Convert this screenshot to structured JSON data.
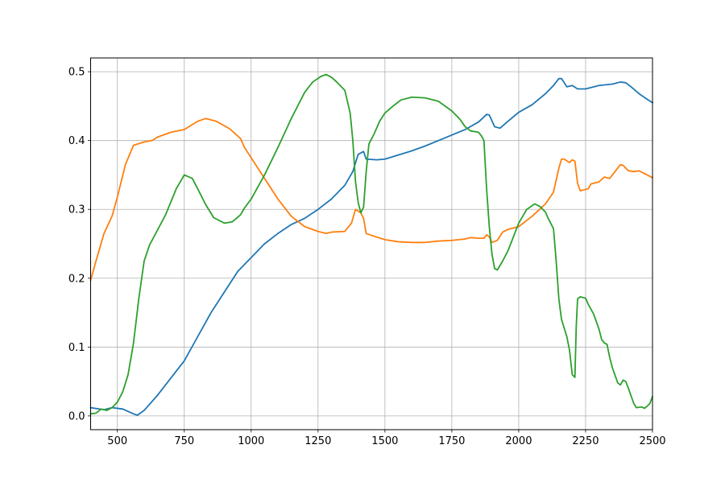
{
  "chart_data": {
    "type": "line",
    "title": "",
    "xlabel": "",
    "ylabel": "",
    "xlim": [
      400,
      2500
    ],
    "ylim": [
      -0.02,
      0.52
    ],
    "xticks": [
      500,
      750,
      1000,
      1250,
      1500,
      1750,
      2000,
      2250,
      2500
    ],
    "yticks": [
      0.0,
      0.1,
      0.2,
      0.3,
      0.4,
      0.5
    ],
    "xtick_labels": [
      "500",
      "750",
      "1000",
      "1250",
      "1500",
      "1750",
      "2000",
      "2250",
      "2500"
    ],
    "ytick_labels": [
      "0.0",
      "0.1",
      "0.2",
      "0.3",
      "0.4",
      "0.5"
    ],
    "grid": true,
    "legend": "none",
    "series": [
      {
        "color": "#1f77b4",
        "points": [
          [
            400,
            0.012
          ],
          [
            450,
            0.009
          ],
          [
            480,
            0.012
          ],
          [
            520,
            0.01
          ],
          [
            560,
            0.003
          ],
          [
            575,
            0.001
          ],
          [
            600,
            0.008
          ],
          [
            650,
            0.03
          ],
          [
            700,
            0.055
          ],
          [
            750,
            0.08
          ],
          [
            800,
            0.115
          ],
          [
            850,
            0.15
          ],
          [
            900,
            0.18
          ],
          [
            950,
            0.21
          ],
          [
            1000,
            0.23
          ],
          [
            1050,
            0.25
          ],
          [
            1100,
            0.265
          ],
          [
            1150,
            0.278
          ],
          [
            1200,
            0.287
          ],
          [
            1250,
            0.3
          ],
          [
            1300,
            0.315
          ],
          [
            1350,
            0.335
          ],
          [
            1380,
            0.355
          ],
          [
            1400,
            0.38
          ],
          [
            1420,
            0.384
          ],
          [
            1430,
            0.373
          ],
          [
            1470,
            0.372
          ],
          [
            1500,
            0.373
          ],
          [
            1550,
            0.379
          ],
          [
            1600,
            0.385
          ],
          [
            1650,
            0.392
          ],
          [
            1700,
            0.4
          ],
          [
            1750,
            0.408
          ],
          [
            1800,
            0.416
          ],
          [
            1850,
            0.427
          ],
          [
            1880,
            0.438
          ],
          [
            1890,
            0.437
          ],
          [
            1910,
            0.42
          ],
          [
            1930,
            0.418
          ],
          [
            1960,
            0.428
          ],
          [
            2000,
            0.441
          ],
          [
            2050,
            0.452
          ],
          [
            2100,
            0.468
          ],
          [
            2130,
            0.48
          ],
          [
            2150,
            0.49
          ],
          [
            2160,
            0.49
          ],
          [
            2180,
            0.478
          ],
          [
            2200,
            0.48
          ],
          [
            2220,
            0.475
          ],
          [
            2250,
            0.475
          ],
          [
            2300,
            0.48
          ],
          [
            2350,
            0.482
          ],
          [
            2380,
            0.485
          ],
          [
            2400,
            0.484
          ],
          [
            2420,
            0.478
          ],
          [
            2450,
            0.468
          ],
          [
            2480,
            0.46
          ],
          [
            2500,
            0.455
          ]
        ]
      },
      {
        "color": "#ff7f0e",
        "points": [
          [
            400,
            0.197
          ],
          [
            420,
            0.225
          ],
          [
            450,
            0.265
          ],
          [
            480,
            0.29
          ],
          [
            500,
            0.318
          ],
          [
            530,
            0.365
          ],
          [
            560,
            0.393
          ],
          [
            600,
            0.398
          ],
          [
            630,
            0.4
          ],
          [
            650,
            0.405
          ],
          [
            700,
            0.412
          ],
          [
            750,
            0.416
          ],
          [
            800,
            0.428
          ],
          [
            830,
            0.432
          ],
          [
            870,
            0.428
          ],
          [
            920,
            0.417
          ],
          [
            960,
            0.403
          ],
          [
            975,
            0.39
          ],
          [
            1000,
            0.375
          ],
          [
            1050,
            0.345
          ],
          [
            1100,
            0.315
          ],
          [
            1150,
            0.29
          ],
          [
            1200,
            0.275
          ],
          [
            1250,
            0.268
          ],
          [
            1280,
            0.265
          ],
          [
            1300,
            0.267
          ],
          [
            1350,
            0.268
          ],
          [
            1375,
            0.28
          ],
          [
            1390,
            0.3
          ],
          [
            1410,
            0.295
          ],
          [
            1420,
            0.287
          ],
          [
            1430,
            0.265
          ],
          [
            1460,
            0.261
          ],
          [
            1500,
            0.256
          ],
          [
            1550,
            0.253
          ],
          [
            1600,
            0.252
          ],
          [
            1650,
            0.252
          ],
          [
            1700,
            0.254
          ],
          [
            1750,
            0.255
          ],
          [
            1800,
            0.257
          ],
          [
            1820,
            0.259
          ],
          [
            1850,
            0.258
          ],
          [
            1870,
            0.258
          ],
          [
            1880,
            0.263
          ],
          [
            1890,
            0.26
          ],
          [
            1900,
            0.252
          ],
          [
            1920,
            0.255
          ],
          [
            1940,
            0.267
          ],
          [
            1960,
            0.271
          ],
          [
            2000,
            0.275
          ],
          [
            2050,
            0.29
          ],
          [
            2100,
            0.308
          ],
          [
            2130,
            0.325
          ],
          [
            2150,
            0.36
          ],
          [
            2160,
            0.373
          ],
          [
            2170,
            0.373
          ],
          [
            2190,
            0.368
          ],
          [
            2200,
            0.372
          ],
          [
            2210,
            0.37
          ],
          [
            2220,
            0.338
          ],
          [
            2230,
            0.327
          ],
          [
            2260,
            0.33
          ],
          [
            2270,
            0.337
          ],
          [
            2300,
            0.34
          ],
          [
            2320,
            0.347
          ],
          [
            2340,
            0.345
          ],
          [
            2360,
            0.355
          ],
          [
            2380,
            0.365
          ],
          [
            2390,
            0.364
          ],
          [
            2410,
            0.356
          ],
          [
            2430,
            0.355
          ],
          [
            2450,
            0.356
          ],
          [
            2480,
            0.35
          ],
          [
            2500,
            0.346
          ]
        ]
      },
      {
        "color": "#2ca02c",
        "points": [
          [
            400,
            0.003
          ],
          [
            420,
            0.004
          ],
          [
            440,
            0.01
          ],
          [
            460,
            0.008
          ],
          [
            480,
            0.012
          ],
          [
            500,
            0.02
          ],
          [
            520,
            0.035
          ],
          [
            540,
            0.06
          ],
          [
            560,
            0.105
          ],
          [
            580,
            0.17
          ],
          [
            600,
            0.225
          ],
          [
            620,
            0.248
          ],
          [
            650,
            0.27
          ],
          [
            680,
            0.292
          ],
          [
            720,
            0.33
          ],
          [
            750,
            0.35
          ],
          [
            780,
            0.345
          ],
          [
            800,
            0.33
          ],
          [
            830,
            0.307
          ],
          [
            860,
            0.288
          ],
          [
            900,
            0.28
          ],
          [
            930,
            0.282
          ],
          [
            960,
            0.292
          ],
          [
            975,
            0.302
          ],
          [
            1000,
            0.315
          ],
          [
            1050,
            0.35
          ],
          [
            1100,
            0.39
          ],
          [
            1150,
            0.432
          ],
          [
            1200,
            0.47
          ],
          [
            1230,
            0.485
          ],
          [
            1260,
            0.493
          ],
          [
            1280,
            0.496
          ],
          [
            1300,
            0.492
          ],
          [
            1320,
            0.485
          ],
          [
            1350,
            0.473
          ],
          [
            1370,
            0.44
          ],
          [
            1380,
            0.4
          ],
          [
            1390,
            0.34
          ],
          [
            1400,
            0.31
          ],
          [
            1410,
            0.295
          ],
          [
            1420,
            0.303
          ],
          [
            1430,
            0.355
          ],
          [
            1440,
            0.395
          ],
          [
            1460,
            0.41
          ],
          [
            1480,
            0.428
          ],
          [
            1500,
            0.44
          ],
          [
            1530,
            0.45
          ],
          [
            1560,
            0.459
          ],
          [
            1600,
            0.463
          ],
          [
            1650,
            0.462
          ],
          [
            1700,
            0.457
          ],
          [
            1750,
            0.443
          ],
          [
            1780,
            0.431
          ],
          [
            1800,
            0.42
          ],
          [
            1820,
            0.414
          ],
          [
            1850,
            0.412
          ],
          [
            1860,
            0.407
          ],
          [
            1870,
            0.4
          ],
          [
            1880,
            0.33
          ],
          [
            1890,
            0.275
          ],
          [
            1900,
            0.235
          ],
          [
            1910,
            0.214
          ],
          [
            1920,
            0.212
          ],
          [
            1940,
            0.225
          ],
          [
            1960,
            0.24
          ],
          [
            1980,
            0.26
          ],
          [
            2000,
            0.28
          ],
          [
            2030,
            0.3
          ],
          [
            2060,
            0.308
          ],
          [
            2080,
            0.304
          ],
          [
            2100,
            0.296
          ],
          [
            2110,
            0.287
          ],
          [
            2130,
            0.272
          ],
          [
            2140,
            0.225
          ],
          [
            2150,
            0.17
          ],
          [
            2160,
            0.14
          ],
          [
            2180,
            0.115
          ],
          [
            2190,
            0.095
          ],
          [
            2200,
            0.06
          ],
          [
            2210,
            0.056
          ],
          [
            2215,
            0.13
          ],
          [
            2220,
            0.17
          ],
          [
            2230,
            0.173
          ],
          [
            2250,
            0.171
          ],
          [
            2260,
            0.162
          ],
          [
            2280,
            0.148
          ],
          [
            2300,
            0.126
          ],
          [
            2310,
            0.111
          ],
          [
            2320,
            0.106
          ],
          [
            2330,
            0.104
          ],
          [
            2340,
            0.085
          ],
          [
            2350,
            0.07
          ],
          [
            2370,
            0.048
          ],
          [
            2380,
            0.045
          ],
          [
            2390,
            0.052
          ],
          [
            2400,
            0.05
          ],
          [
            2410,
            0.04
          ],
          [
            2430,
            0.018
          ],
          [
            2440,
            0.012
          ],
          [
            2460,
            0.013
          ],
          [
            2470,
            0.011
          ],
          [
            2480,
            0.014
          ],
          [
            2490,
            0.018
          ],
          [
            2500,
            0.028
          ]
        ]
      }
    ]
  }
}
